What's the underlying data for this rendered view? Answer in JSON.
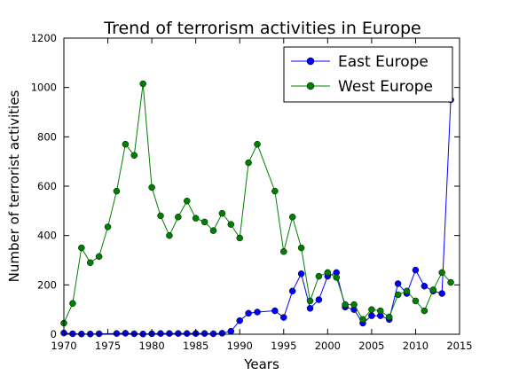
{
  "chart_data": {
    "type": "line",
    "title": "Trend of terrorism activities in Europe",
    "xlabel": "Years",
    "ylabel": "Number of terrorist activities",
    "xlim": [
      1970,
      2015
    ],
    "ylim": [
      0,
      1200
    ],
    "xticks": [
      "1970",
      "1975",
      "1980",
      "1985",
      "1990",
      "1995",
      "2000",
      "2005",
      "2010",
      "2015"
    ],
    "yticks": [
      "0",
      "200",
      "400",
      "600",
      "800",
      "1000",
      "1200"
    ],
    "grid": false,
    "legend_position": "top-right",
    "series": [
      {
        "name": "East Europe",
        "color": "#0000ff",
        "x": [
          1970,
          1971,
          1972,
          1973,
          1974,
          1976,
          1977,
          1978,
          1979,
          1980,
          1981,
          1982,
          1983,
          1984,
          1985,
          1986,
          1987,
          1988,
          1989,
          1990,
          1991,
          1992,
          1994,
          1995,
          1996,
          1997,
          1998,
          1999,
          2000,
          2001,
          2002,
          2003,
          2004,
          2005,
          2006,
          2007,
          2008,
          2009,
          2010,
          2011,
          2012,
          2013,
          2014
        ],
        "y": [
          5,
          2,
          1,
          1,
          2,
          3,
          4,
          2,
          1,
          2,
          3,
          3,
          3,
          3,
          3,
          3,
          2,
          4,
          12,
          55,
          85,
          90,
          95,
          68,
          175,
          245,
          105,
          140,
          235,
          250,
          110,
          100,
          45,
          75,
          75,
          60,
          205,
          165,
          260,
          195,
          175,
          165,
          950
        ]
      },
      {
        "name": "West Europe",
        "color": "#008000",
        "x": [
          1970,
          1971,
          1972,
          1973,
          1974,
          1975,
          1976,
          1977,
          1978,
          1979,
          1980,
          1981,
          1982,
          1983,
          1984,
          1985,
          1986,
          1987,
          1988,
          1989,
          1990,
          1991,
          1992,
          1994,
          1995,
          1996,
          1997,
          1998,
          1999,
          2000,
          2001,
          2002,
          2003,
          2004,
          2005,
          2006,
          2007,
          2008,
          2009,
          2010,
          2011,
          2012,
          2013,
          2014
        ],
        "y": [
          45,
          125,
          350,
          290,
          315,
          435,
          580,
          770,
          725,
          1015,
          595,
          480,
          400,
          475,
          540,
          470,
          455,
          420,
          490,
          445,
          390,
          695,
          770,
          580,
          335,
          475,
          350,
          135,
          235,
          250,
          230,
          120,
          120,
          60,
          100,
          95,
          70,
          160,
          175,
          135,
          95,
          180,
          250,
          210
        ]
      }
    ]
  }
}
